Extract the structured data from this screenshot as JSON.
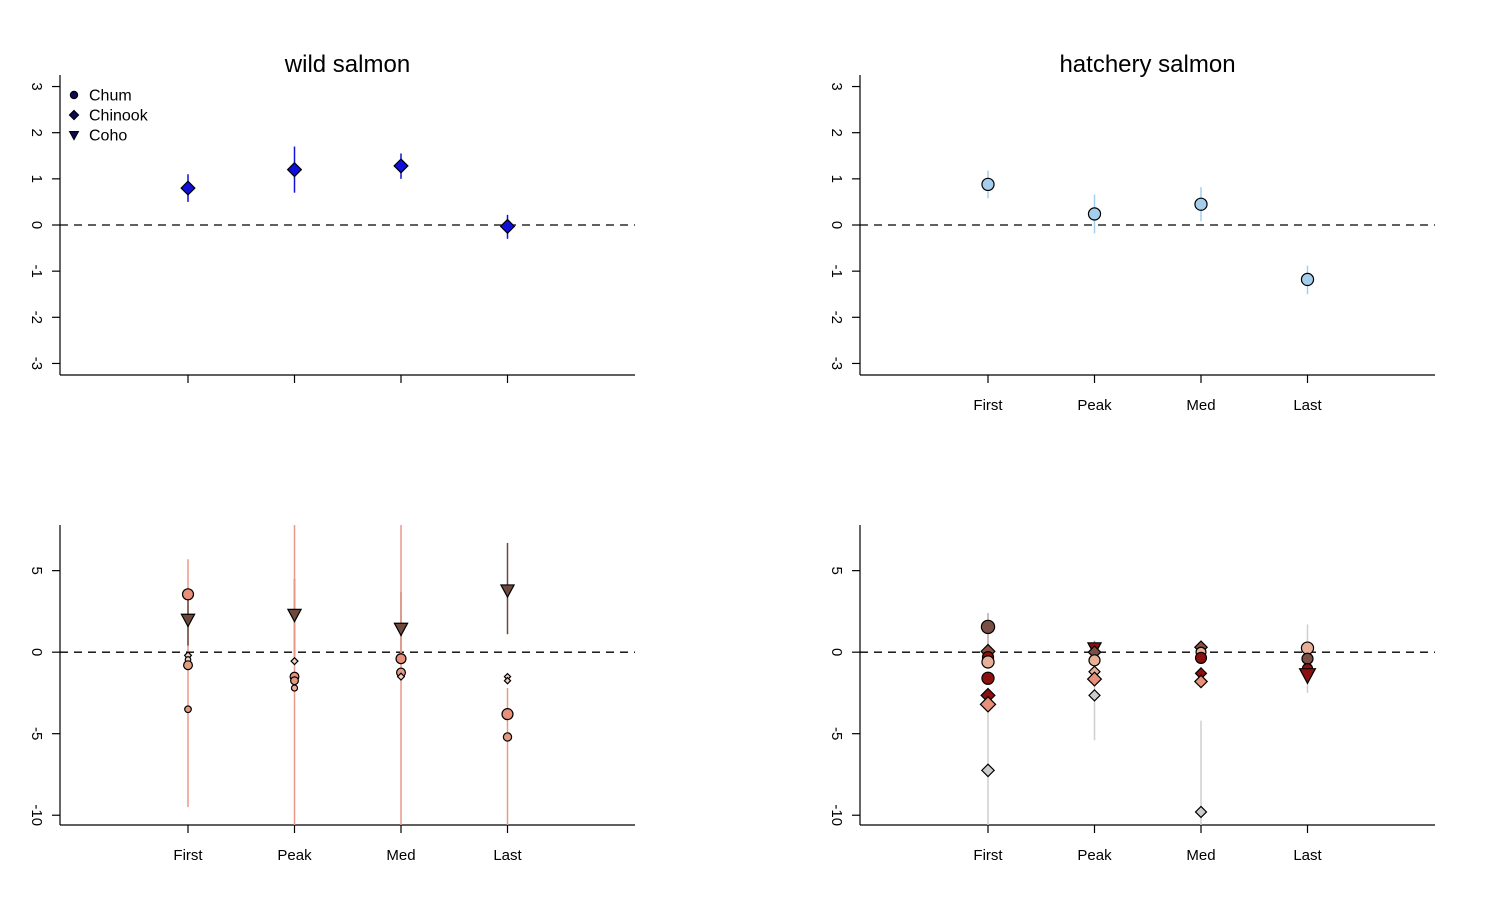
{
  "chart_data": [
    {
      "id": "wild-top",
      "type": "scatter",
      "title": "wild salmon",
      "categories": [
        "First",
        "Peak",
        "Med",
        "Last"
      ],
      "show_x_tick_labels": false,
      "yticks": [
        "-3",
        "-2",
        "-1",
        "0",
        "1",
        "2",
        "3"
      ],
      "ylim": [
        -3.25,
        3.25
      ],
      "reference_line": 0,
      "legend": {
        "placement": "top-left",
        "entries": [
          {
            "label": "Chum",
            "shape": "circle"
          },
          {
            "label": "Chinook",
            "shape": "diamond"
          },
          {
            "label": "Coho",
            "shape": "triangle"
          }
        ]
      },
      "points": [
        {
          "x": "First",
          "y": 0.8,
          "lo": 0.5,
          "hi": 1.1,
          "shape": "diamond",
          "fill": "#1010d8",
          "line": "#1010d8",
          "size": 1.0
        },
        {
          "x": "Peak",
          "y": 1.2,
          "lo": 0.7,
          "hi": 1.7,
          "shape": "diamond",
          "fill": "#1010d8",
          "line": "#1010d8",
          "size": 1.0
        },
        {
          "x": "Med",
          "y": 1.28,
          "lo": 1.0,
          "hi": 1.55,
          "shape": "diamond",
          "fill": "#1010d8",
          "line": "#1010d8",
          "size": 1.0
        },
        {
          "x": "Last",
          "y": -0.03,
          "lo": -0.3,
          "hi": 0.22,
          "shape": "diamond",
          "fill": "#1010d8",
          "line": "#1010d8",
          "size": 1.0
        }
      ]
    },
    {
      "id": "hatchery-top",
      "type": "scatter",
      "title": "hatchery salmon",
      "categories": [
        "First",
        "Peak",
        "Med",
        "Last"
      ],
      "show_x_tick_labels": true,
      "yticks": [
        "-3",
        "-2",
        "-1",
        "0",
        "1",
        "2",
        "3"
      ],
      "ylim": [
        -3.25,
        3.25
      ],
      "reference_line": 0,
      "points": [
        {
          "x": "First",
          "y": 0.88,
          "lo": 0.58,
          "hi": 1.18,
          "shape": "circle",
          "fill": "#a3cfec",
          "line": "#a3cfec",
          "size": 1.1
        },
        {
          "x": "Peak",
          "y": 0.24,
          "lo": -0.18,
          "hi": 0.66,
          "shape": "circle",
          "fill": "#a3cfec",
          "line": "#a3cfec",
          "size": 1.1
        },
        {
          "x": "Med",
          "y": 0.45,
          "lo": 0.08,
          "hi": 0.82,
          "shape": "circle",
          "fill": "#a3cfec",
          "line": "#a3cfec",
          "size": 1.1
        },
        {
          "x": "Last",
          "y": -1.18,
          "lo": -1.5,
          "hi": -0.88,
          "shape": "circle",
          "fill": "#a3cfec",
          "line": "#a3cfec",
          "size": 1.1
        }
      ]
    },
    {
      "id": "wild-bottom",
      "type": "scatter",
      "title": "",
      "categories": [
        "First",
        "Peak",
        "Med",
        "Last"
      ],
      "show_x_tick_labels": true,
      "yticks": [
        "-10",
        "-5",
        "0",
        "5"
      ],
      "ylim": [
        -10.6,
        7.8
      ],
      "reference_line": 0,
      "points": [
        {
          "x": "First",
          "y": 3.55,
          "lo": -9.5,
          "hi": 5.7,
          "shape": "circle",
          "fill": "#e8907a",
          "line": "#e89a88",
          "size": 1.0
        },
        {
          "x": "First",
          "y": 2.0,
          "lo": 0.4,
          "hi": 3.4,
          "shape": "triangle",
          "fill": "#6e4a3e",
          "line": "#6e4a3e",
          "size": 1.0
        },
        {
          "x": "First",
          "y": -0.2,
          "lo": null,
          "hi": null,
          "shape": "diamond",
          "fill": "#f2d0c4",
          "line": "#000000",
          "size": 0.5
        },
        {
          "x": "First",
          "y": -0.45,
          "lo": null,
          "hi": null,
          "shape": "circle",
          "fill": "#f2d0c4",
          "line": "#000000",
          "size": 0.5
        },
        {
          "x": "First",
          "y": -0.8,
          "lo": null,
          "hi": null,
          "shape": "circle",
          "fill": "#e0a080",
          "line": "#000000",
          "size": 0.8
        },
        {
          "x": "First",
          "y": -3.5,
          "lo": null,
          "hi": null,
          "shape": "circle",
          "fill": "#e09a80",
          "line": "#000000",
          "size": 0.6
        },
        {
          "x": "Peak",
          "y": 2.3,
          "lo": -0.3,
          "hi": 4.5,
          "shape": "triangle",
          "fill": "#6e4a3e",
          "line": "#6e4a3e",
          "size": 1.0
        },
        {
          "x": "Peak",
          "y": 0.0,
          "lo": -10.6,
          "hi": 7.8,
          "shape": "circle",
          "fill": "#e8907a",
          "line": "#e89a88",
          "size": 0.0
        },
        {
          "x": "Peak",
          "y": -0.55,
          "lo": null,
          "hi": null,
          "shape": "diamond",
          "fill": "#f2d0c4",
          "line": "#000000",
          "size": 0.5
        },
        {
          "x": "Peak",
          "y": -1.5,
          "lo": null,
          "hi": null,
          "shape": "circle",
          "fill": "#e8907a",
          "line": "#000000",
          "size": 0.8
        },
        {
          "x": "Peak",
          "y": -1.75,
          "lo": null,
          "hi": null,
          "shape": "circle",
          "fill": "#e09a80",
          "line": "#000000",
          "size": 0.7
        },
        {
          "x": "Peak",
          "y": -2.2,
          "lo": null,
          "hi": null,
          "shape": "circle",
          "fill": "#e8b098",
          "line": "#000000",
          "size": 0.55
        },
        {
          "x": "Med",
          "y": 1.45,
          "lo": -0.3,
          "hi": 3.7,
          "shape": "triangle",
          "fill": "#6e4a3e",
          "line": "#6e4a3e",
          "size": 1.0
        },
        {
          "x": "Med",
          "y": -0.4,
          "lo": -10.6,
          "hi": 7.8,
          "shape": "circle",
          "fill": "#e8907a",
          "line": "#e89a88",
          "size": 0.9
        },
        {
          "x": "Med",
          "y": -1.25,
          "lo": null,
          "hi": null,
          "shape": "circle",
          "fill": "#e09a80",
          "line": "#000000",
          "size": 0.8
        },
        {
          "x": "Med",
          "y": -1.5,
          "lo": null,
          "hi": null,
          "shape": "diamond",
          "fill": "#f2d0c4",
          "line": "#000000",
          "size": 0.5
        },
        {
          "x": "Last",
          "y": 3.8,
          "lo": 1.1,
          "hi": 6.7,
          "shape": "triangle",
          "fill": "#6e4a3e",
          "line": "#6e4a3e",
          "size": 1.0
        },
        {
          "x": "Last",
          "y": -1.5,
          "lo": null,
          "hi": null,
          "shape": "diamond",
          "fill": "#f2d0c4",
          "line": "#000000",
          "size": 0.45
        },
        {
          "x": "Last",
          "y": -1.75,
          "lo": null,
          "hi": null,
          "shape": "diamond",
          "fill": "#f2d0c4",
          "line": "#000000",
          "size": 0.45
        },
        {
          "x": "Last",
          "y": -3.8,
          "lo": -10.6,
          "hi": -2.2,
          "shape": "circle",
          "fill": "#e8907a",
          "line": "#e89a88",
          "size": 1.0
        },
        {
          "x": "Last",
          "y": -5.2,
          "lo": null,
          "hi": null,
          "shape": "circle",
          "fill": "#e09a80",
          "line": "#000000",
          "size": 0.75
        }
      ]
    },
    {
      "id": "hatchery-bottom",
      "type": "scatter",
      "title": "",
      "categories": [
        "First",
        "Peak",
        "Med",
        "Last"
      ],
      "show_x_tick_labels": true,
      "yticks": [
        "-10",
        "-5",
        "0",
        "5"
      ],
      "ylim": [
        -10.6,
        7.8
      ],
      "reference_line": 0,
      "points": [
        {
          "x": "First",
          "y": 1.55,
          "lo": 0.3,
          "hi": 2.4,
          "shape": "circle",
          "fill": "#7a5044",
          "line": "#b8a8a8",
          "size": 1.2
        },
        {
          "x": "First",
          "y": -7.25,
          "lo": -10.6,
          "hi": -2.5,
          "shape": "diamond",
          "fill": "#cccccc",
          "line": "#cfcfcf",
          "size": 0.9
        },
        {
          "x": "First",
          "y": 0.05,
          "lo": null,
          "hi": null,
          "shape": "diamond",
          "fill": "#8a5040",
          "line": "#000000",
          "size": 1.0
        },
        {
          "x": "First",
          "y": -0.3,
          "lo": null,
          "hi": null,
          "shape": "circle",
          "fill": "#8b1010",
          "line": "#000000",
          "size": 1.0
        },
        {
          "x": "First",
          "y": -0.6,
          "lo": null,
          "hi": null,
          "shape": "circle",
          "fill": "#e8b098",
          "line": "#000000",
          "size": 1.1
        },
        {
          "x": "First",
          "y": -1.6,
          "lo": null,
          "hi": null,
          "shape": "circle",
          "fill": "#8b1010",
          "line": "#000000",
          "size": 1.1
        },
        {
          "x": "First",
          "y": -2.65,
          "lo": null,
          "hi": null,
          "shape": "diamond",
          "fill": "#8b1010",
          "line": "#000000",
          "size": 1.0
        },
        {
          "x": "First",
          "y": -3.2,
          "lo": null,
          "hi": null,
          "shape": "diamond",
          "fill": "#e8907a",
          "line": "#000000",
          "size": 1.1
        },
        {
          "x": "Peak",
          "y": 0.25,
          "lo": -0.3,
          "hi": 0.7,
          "shape": "triangle",
          "fill": "#8b1010",
          "line": "#999999",
          "size": 1.0
        },
        {
          "x": "Peak",
          "y": 0.0,
          "lo": null,
          "hi": null,
          "shape": "diamond",
          "fill": "#7a5044",
          "line": "#000000",
          "size": 0.9
        },
        {
          "x": "Peak",
          "y": -0.5,
          "lo": null,
          "hi": null,
          "shape": "circle",
          "fill": "#e8b098",
          "line": "#000000",
          "size": 1.0
        },
        {
          "x": "Peak",
          "y": -1.2,
          "lo": null,
          "hi": null,
          "shape": "diamond",
          "fill": "#e8b098",
          "line": "#000000",
          "size": 0.8
        },
        {
          "x": "Peak",
          "y": -1.65,
          "lo": null,
          "hi": null,
          "shape": "diamond",
          "fill": "#e8907a",
          "line": "#000000",
          "size": 1.0
        },
        {
          "x": "Peak",
          "y": -2.65,
          "lo": -5.4,
          "hi": -1.2,
          "shape": "diamond",
          "fill": "#cccccc",
          "line": "#cfcfcf",
          "size": 0.8
        },
        {
          "x": "Med",
          "y": 0.3,
          "lo": null,
          "hi": null,
          "shape": "diamond",
          "fill": "#8a5040",
          "line": "#000000",
          "size": 0.9
        },
        {
          "x": "Med",
          "y": 0.0,
          "lo": null,
          "hi": null,
          "shape": "circle",
          "fill": "#e8b098",
          "line": "#000000",
          "size": 0.9
        },
        {
          "x": "Med",
          "y": -0.35,
          "lo": null,
          "hi": null,
          "shape": "circle",
          "fill": "#8b1010",
          "line": "#000000",
          "size": 1.0
        },
        {
          "x": "Med",
          "y": -1.3,
          "lo": null,
          "hi": null,
          "shape": "diamond",
          "fill": "#8b1010",
          "line": "#000000",
          "size": 0.8
        },
        {
          "x": "Med",
          "y": -1.8,
          "lo": null,
          "hi": null,
          "shape": "diamond",
          "fill": "#e8907a",
          "line": "#000000",
          "size": 0.9
        },
        {
          "x": "Med",
          "y": -9.8,
          "lo": -10.6,
          "hi": -4.2,
          "shape": "diamond",
          "fill": "#cccccc",
          "line": "#cfcfcf",
          "size": 0.8
        },
        {
          "x": "Last",
          "y": 0.25,
          "lo": -1.0,
          "hi": 1.7,
          "shape": "circle",
          "fill": "#e8b098",
          "line": "#cfcfcf",
          "size": 1.1
        },
        {
          "x": "Last",
          "y": -0.4,
          "lo": null,
          "hi": null,
          "shape": "circle",
          "fill": "#7a5044",
          "line": "#000000",
          "size": 1.0
        },
        {
          "x": "Last",
          "y": -1.0,
          "lo": -2.5,
          "hi": 0.3,
          "shape": "circle",
          "fill": "#8b1010",
          "line": "#cfcfcf",
          "size": 0.9
        },
        {
          "x": "Last",
          "y": -1.4,
          "lo": null,
          "hi": null,
          "shape": "triangle",
          "fill": "#8b1010",
          "line": "#000000",
          "size": 1.2
        }
      ]
    }
  ]
}
